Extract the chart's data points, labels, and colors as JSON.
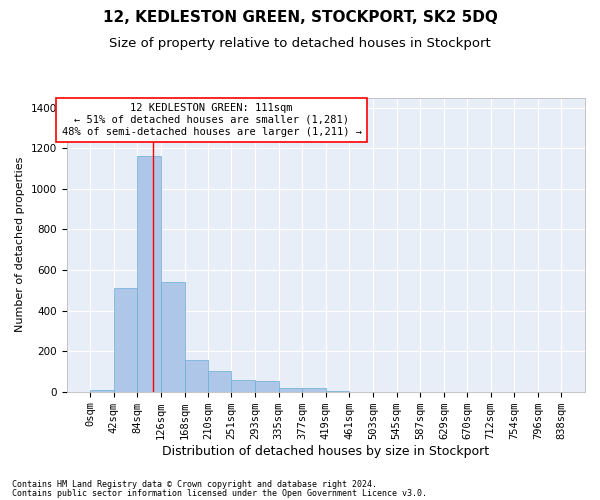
{
  "title": "12, KEDLESTON GREEN, STOCKPORT, SK2 5DQ",
  "subtitle": "Size of property relative to detached houses in Stockport",
  "xlabel": "Distribution of detached houses by size in Stockport",
  "ylabel": "Number of detached properties",
  "footnote1": "Contains HM Land Registry data © Crown copyright and database right 2024.",
  "footnote2": "Contains public sector information licensed under the Open Government Licence v3.0.",
  "bar_edges": [
    0,
    42,
    84,
    126,
    168,
    210,
    251,
    293,
    335,
    377,
    419,
    461,
    503,
    545,
    587,
    629,
    670,
    712,
    754,
    796,
    838
  ],
  "bar_heights": [
    10,
    510,
    1160,
    540,
    155,
    100,
    60,
    55,
    20,
    20,
    5,
    0,
    0,
    0,
    0,
    0,
    0,
    0,
    0,
    0
  ],
  "bar_color": "#aec6e8",
  "bar_edge_color": "#6aaed6",
  "background_color": "#e8eef8",
  "grid_color": "#ffffff",
  "red_line_x": 111,
  "annotation_text": "12 KEDLESTON GREEN: 111sqm\n← 51% of detached houses are smaller (1,281)\n48% of semi-detached houses are larger (1,211) →",
  "ylim": [
    0,
    1450
  ],
  "yticks": [
    0,
    200,
    400,
    600,
    800,
    1000,
    1200,
    1400
  ],
  "title_fontsize": 11,
  "subtitle_fontsize": 9.5,
  "xlabel_fontsize": 9,
  "ylabel_fontsize": 8,
  "tick_fontsize": 7.5,
  "annotation_fontsize": 7.5,
  "footnote_fontsize": 6
}
